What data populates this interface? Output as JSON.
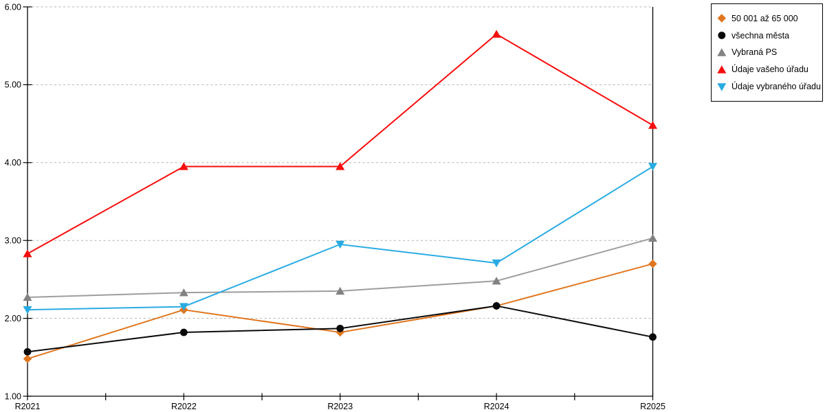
{
  "chart_data": {
    "type": "line",
    "title": "",
    "xlabel": "",
    "ylabel": "",
    "categories": [
      "R2021",
      "R2022",
      "R2023",
      "R2024",
      "R2025"
    ],
    "yticks": [
      "1.00",
      "2.00",
      "3.00",
      "4.00",
      "5.00",
      "6.00"
    ],
    "ylim": [
      1,
      6
    ],
    "grid": "horizontal-dashed",
    "legend_position": "top-right",
    "series": [
      {
        "name": "50 001 až 65 000",
        "marker": "diamond",
        "color": "#E0761E",
        "values": [
          1.48,
          2.11,
          1.82,
          2.16,
          2.7
        ]
      },
      {
        "name": "všechna města",
        "marker": "circle",
        "color": "#0A0A0A",
        "values": [
          1.57,
          1.82,
          1.87,
          2.16,
          1.76
        ]
      },
      {
        "name": "Vybraná PS",
        "marker": "triangle-up",
        "color": "#828282",
        "line_color": "#9D9D9D",
        "values": [
          2.27,
          2.33,
          2.35,
          2.48,
          3.03
        ]
      },
      {
        "name": "Údaje vašeho úřadu",
        "marker": "triangle-up",
        "color": "#F70D0D",
        "values": [
          2.83,
          3.95,
          3.95,
          5.65,
          4.48
        ]
      },
      {
        "name": "Údaje vybraného úřadu",
        "marker": "triangle-down",
        "color": "#29ABE2",
        "values": [
          2.11,
          2.15,
          2.95,
          2.71,
          3.95
        ]
      }
    ]
  },
  "colors": {
    "background": "#FFFFFF",
    "axis": "#000000",
    "grid": "#B3B3B3",
    "legend_border": "#000000"
  }
}
